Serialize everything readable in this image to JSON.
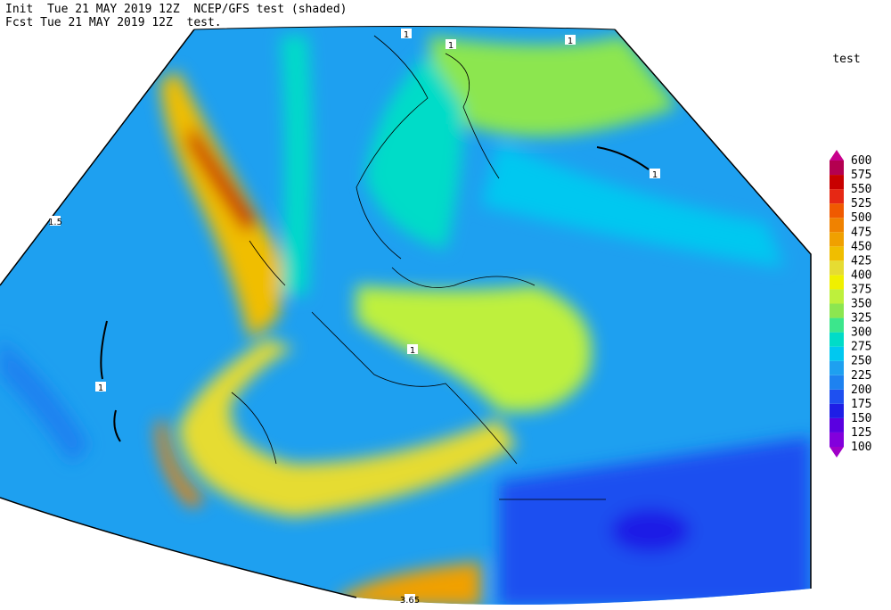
{
  "header": {
    "line1": "Init  Tue 21 MAY 2019 12Z  NCEP/GFS test (shaded)",
    "line2": "Fcst Tue 21 MAY 2019 12Z  test."
  },
  "colorbar": {
    "title": "test",
    "levels": [
      100,
      125,
      150,
      175,
      200,
      225,
      250,
      275,
      300,
      325,
      350,
      375,
      400,
      425,
      450,
      475,
      500,
      525,
      550,
      575,
      600
    ],
    "colors": [
      "#a000c8",
      "#8200dc",
      "#5a00e0",
      "#1e1ee6",
      "#1e50f0",
      "#1e82f0",
      "#1ea0f0",
      "#00c8f0",
      "#00dcc8",
      "#3ce68c",
      "#8ce650",
      "#bef03c",
      "#f0f000",
      "#e6dc32",
      "#f0be00",
      "#f0a000",
      "#f08200",
      "#f05a00",
      "#e62814",
      "#c80000",
      "#b40050",
      "#c8008c"
    ]
  },
  "map": {
    "contour_labels": [
      "1",
      "1",
      "1",
      "1",
      "1.5",
      "1",
      "1",
      "3.65"
    ]
  }
}
